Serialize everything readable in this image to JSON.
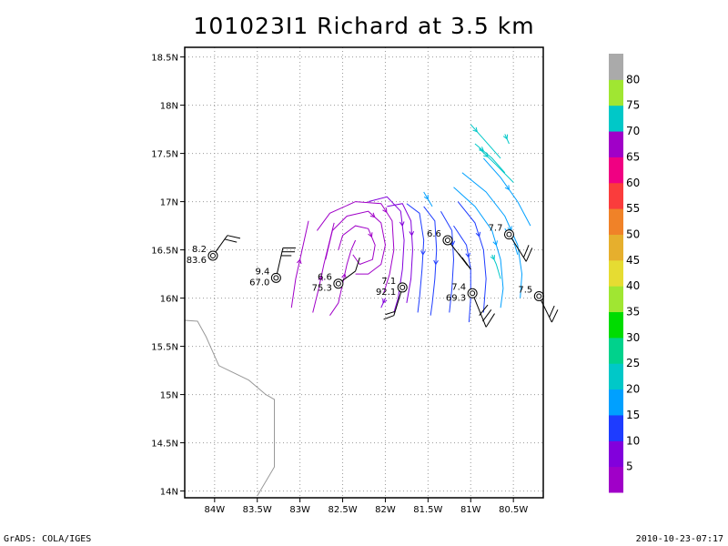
{
  "title": "101023I1 Richard at 3.5 km",
  "footer": {
    "left": "GrADS: COLA/IGES",
    "right": "2010-10-23-07:17"
  },
  "chart_data": {
    "type": "streamline-map",
    "title": "101023I1 Richard at 3.5 km",
    "xlim": [
      -84.35,
      -80.15
    ],
    "ylim": [
      13.93,
      18.6
    ],
    "x_ticks": [
      {
        "value": -84.0,
        "label": "84W"
      },
      {
        "value": -83.5,
        "label": "83.5W"
      },
      {
        "value": -83.0,
        "label": "83W"
      },
      {
        "value": -82.5,
        "label": "82.5W"
      },
      {
        "value": -82.0,
        "label": "82W"
      },
      {
        "value": -81.5,
        "label": "81.5W"
      },
      {
        "value": -81.0,
        "label": "81W"
      },
      {
        "value": -80.5,
        "label": "80.5W"
      }
    ],
    "y_ticks": [
      {
        "value": 14.0,
        "label": "14N"
      },
      {
        "value": 14.5,
        "label": "14.5N"
      },
      {
        "value": 15.0,
        "label": "15N"
      },
      {
        "value": 15.5,
        "label": "15.5N"
      },
      {
        "value": 16.0,
        "label": "16N"
      },
      {
        "value": 16.5,
        "label": "16.5N"
      },
      {
        "value": 17.0,
        "label": "17N"
      },
      {
        "value": 17.5,
        "label": "17.5N"
      },
      {
        "value": 18.0,
        "label": "18N"
      },
      {
        "value": 18.5,
        "label": "18.5N"
      }
    ],
    "grid": true,
    "coastline": [
      [
        -84.35,
        15.77
      ],
      [
        -84.2,
        15.76
      ],
      [
        -84.1,
        15.6
      ],
      [
        -83.95,
        15.3
      ],
      [
        -83.6,
        15.15
      ],
      [
        -83.4,
        15.0
      ],
      [
        -83.3,
        14.95
      ],
      [
        -83.3,
        14.25
      ],
      [
        -83.5,
        13.95
      ]
    ],
    "stations": [
      {
        "lon": -84.02,
        "lat": 16.44,
        "label_top": "8.2",
        "label_bottom": "83.6",
        "barb": [
          [
            -84.02,
            16.44
          ],
          [
            -83.85,
            16.65
          ]
        ],
        "flags": [
          [
            -83.85,
            16.65,
            -83.7,
            16.62
          ],
          [
            -83.88,
            16.61,
            -83.74,
            16.58
          ]
        ]
      },
      {
        "lon": -83.28,
        "lat": 16.21,
        "label_top": "9.4",
        "label_bottom": "67.0",
        "barb": [
          [
            -83.28,
            16.21
          ],
          [
            -83.2,
            16.52
          ]
        ],
        "flags": [
          [
            -83.2,
            16.52,
            -83.05,
            16.52
          ],
          [
            -83.21,
            16.48,
            -83.06,
            16.48
          ],
          [
            -83.22,
            16.44,
            -83.1,
            16.44
          ]
        ]
      },
      {
        "lon": -82.55,
        "lat": 16.15,
        "label_top": "6.6",
        "label_bottom": "75.3",
        "barb": [
          [
            -82.55,
            16.15
          ],
          [
            -82.35,
            16.28
          ]
        ],
        "flags": [
          [
            -82.35,
            16.28,
            -82.3,
            16.42
          ]
        ]
      },
      {
        "lon": -81.8,
        "lat": 16.11,
        "label_top": "7.1",
        "label_bottom": "92.1",
        "barb": [
          [
            -81.8,
            16.11
          ],
          [
            -81.9,
            15.82
          ]
        ],
        "flags": [
          [
            -81.9,
            15.82,
            -82.02,
            15.78
          ],
          [
            -81.89,
            15.86,
            -82.0,
            15.83
          ]
        ]
      },
      {
        "lon": -81.27,
        "lat": 16.6,
        "label_top": "6.6",
        "label_bottom": "",
        "barb": [
          [
            -81.27,
            16.6
          ],
          [
            -81.0,
            16.3
          ]
        ],
        "flags": [
          [
            -81.0,
            16.3,
            -81.1,
            16.42
          ],
          [
            -81.04,
            16.34,
            -81.14,
            16.46
          ]
        ]
      },
      {
        "lon": -80.98,
        "lat": 16.05,
        "label_top": "7.4",
        "label_bottom": "69.3",
        "barb": [
          [
            -80.98,
            16.05
          ],
          [
            -80.82,
            15.7
          ]
        ],
        "flags": [
          [
            -80.82,
            15.7,
            -80.72,
            15.84
          ],
          [
            -80.86,
            15.76,
            -80.76,
            15.88
          ],
          [
            -80.9,
            15.82,
            -80.8,
            15.93
          ]
        ]
      },
      {
        "lon": -80.55,
        "lat": 16.66,
        "label_top": "7.7",
        "label_bottom": "",
        "barb": [
          [
            -80.55,
            16.66
          ],
          [
            -80.35,
            16.38
          ]
        ],
        "flags": [
          [
            -80.35,
            16.38,
            -80.28,
            16.52
          ],
          [
            -80.38,
            16.42,
            -80.32,
            16.55
          ]
        ]
      },
      {
        "lon": -80.2,
        "lat": 16.02,
        "label_top": "7.5",
        "label_bottom": "",
        "barb": [
          [
            -80.2,
            16.02
          ],
          [
            -80.05,
            15.75
          ]
        ],
        "flags": [
          [
            -80.05,
            15.75,
            -79.98,
            15.88
          ],
          [
            -80.08,
            15.8,
            -80.02,
            15.92
          ]
        ]
      }
    ],
    "colorbar": {
      "labels": [
        "5",
        "10",
        "15",
        "20",
        "25",
        "30",
        "35",
        "40",
        "45",
        "50",
        "55",
        "60",
        "65",
        "70",
        "75",
        "80"
      ],
      "colors": [
        "#a000c8",
        "#8200dc",
        "#1e3cff",
        "#00a0ff",
        "#00c8c8",
        "#00d28c",
        "#00dc00",
        "#a0e632",
        "#e6dc32",
        "#e6af2d",
        "#f08228",
        "#fa3c3c",
        "#f00082",
        "#a000c8",
        "#00c8c8",
        "#a0e632",
        "#aaaaaa"
      ]
    },
    "streamlines": [
      {
        "c": "#a000c8",
        "p": [
          [
            -83.1,
            15.9
          ],
          [
            -83.05,
            16.2
          ],
          [
            -82.95,
            16.6
          ],
          [
            -82.9,
            16.8
          ]
        ]
      },
      {
        "c": "#a000c8",
        "p": [
          [
            -82.85,
            15.85
          ],
          [
            -82.78,
            16.1
          ],
          [
            -82.72,
            16.35
          ],
          [
            -82.65,
            16.6
          ],
          [
            -82.6,
            16.78
          ]
        ]
      },
      {
        "c": "#a000c8",
        "p": [
          [
            -82.65,
            15.82
          ],
          [
            -82.55,
            15.95
          ],
          [
            -82.5,
            16.15
          ],
          [
            -82.45,
            16.35
          ],
          [
            -82.4,
            16.5
          ],
          [
            -82.35,
            16.6
          ]
        ]
      },
      {
        "c": "#a000c8",
        "p": [
          [
            -82.55,
            16.5
          ],
          [
            -82.5,
            16.65
          ],
          [
            -82.35,
            16.75
          ],
          [
            -82.2,
            16.72
          ],
          [
            -82.12,
            16.55
          ],
          [
            -82.15,
            16.4
          ],
          [
            -82.3,
            16.35
          ],
          [
            -82.38,
            16.45
          ]
        ]
      },
      {
        "c": "#a000c8",
        "p": [
          [
            -82.7,
            16.4
          ],
          [
            -82.62,
            16.7
          ],
          [
            -82.45,
            16.85
          ],
          [
            -82.2,
            16.9
          ],
          [
            -82.05,
            16.78
          ],
          [
            -82.0,
            16.55
          ],
          [
            -82.05,
            16.35
          ],
          [
            -82.2,
            16.25
          ],
          [
            -82.35,
            16.25
          ]
        ]
      },
      {
        "c": "#a000c8",
        "p": [
          [
            -82.8,
            16.7
          ],
          [
            -82.65,
            16.88
          ],
          [
            -82.35,
            17.0
          ],
          [
            -82.05,
            16.98
          ],
          [
            -81.92,
            16.8
          ],
          [
            -81.9,
            16.5
          ],
          [
            -81.95,
            16.25
          ],
          [
            -82.02,
            16.05
          ]
        ]
      },
      {
        "c": "#8200dc",
        "p": [
          [
            -82.2,
            17.0
          ],
          [
            -81.98,
            17.05
          ],
          [
            -81.82,
            16.9
          ],
          [
            -81.78,
            16.6
          ],
          [
            -81.8,
            16.3
          ],
          [
            -81.85,
            16.0
          ],
          [
            -81.9,
            15.85
          ]
        ]
      },
      {
        "c": "#8200dc",
        "p": [
          [
            -81.98,
            16.95
          ],
          [
            -81.8,
            16.98
          ],
          [
            -81.7,
            16.8
          ],
          [
            -81.68,
            16.5
          ],
          [
            -81.7,
            16.2
          ],
          [
            -81.75,
            15.95
          ]
        ]
      },
      {
        "c": "#1e3cff",
        "p": [
          [
            -81.75,
            16.98
          ],
          [
            -81.6,
            16.88
          ],
          [
            -81.55,
            16.6
          ],
          [
            -81.57,
            16.3
          ],
          [
            -81.6,
            16.0
          ],
          [
            -81.62,
            15.85
          ]
        ]
      },
      {
        "c": "#1e3cff",
        "p": [
          [
            -81.55,
            16.95
          ],
          [
            -81.42,
            16.8
          ],
          [
            -81.4,
            16.5
          ],
          [
            -81.42,
            16.2
          ],
          [
            -81.45,
            15.95
          ],
          [
            -81.47,
            15.82
          ]
        ]
      },
      {
        "c": "#1e3cff",
        "p": [
          [
            -81.35,
            16.9
          ],
          [
            -81.22,
            16.7
          ],
          [
            -81.2,
            16.4
          ],
          [
            -81.22,
            16.1
          ],
          [
            -81.25,
            15.85
          ]
        ]
      },
      {
        "c": "#1e3cff",
        "p": [
          [
            -81.2,
            16.75
          ],
          [
            -81.05,
            16.55
          ],
          [
            -81.0,
            16.3
          ],
          [
            -81.0,
            16.0
          ],
          [
            -81.02,
            15.75
          ]
        ]
      },
      {
        "c": "#1e3cff",
        "p": [
          [
            -81.15,
            17.0
          ],
          [
            -80.95,
            16.78
          ],
          [
            -80.85,
            16.5
          ],
          [
            -80.82,
            16.2
          ],
          [
            -80.85,
            15.85
          ]
        ]
      },
      {
        "c": "#00a0ff",
        "p": [
          [
            -81.2,
            17.15
          ],
          [
            -80.95,
            16.95
          ],
          [
            -80.75,
            16.7
          ],
          [
            -80.65,
            16.4
          ],
          [
            -80.62,
            16.1
          ],
          [
            -80.65,
            15.9
          ]
        ]
      },
      {
        "c": "#00a0ff",
        "p": [
          [
            -81.1,
            17.3
          ],
          [
            -80.82,
            17.1
          ],
          [
            -80.6,
            16.85
          ],
          [
            -80.45,
            16.55
          ],
          [
            -80.4,
            16.25
          ],
          [
            -80.42,
            16.0
          ]
        ]
      },
      {
        "c": "#00a0ff",
        "p": [
          [
            -80.85,
            17.45
          ],
          [
            -80.65,
            17.25
          ],
          [
            -80.45,
            17.0
          ],
          [
            -80.3,
            16.75
          ]
        ]
      },
      {
        "c": "#00c8c8",
        "p": [
          [
            -80.95,
            17.6
          ],
          [
            -80.75,
            17.45
          ],
          [
            -80.6,
            17.3
          ]
        ]
      },
      {
        "c": "#00c8c8",
        "p": [
          [
            -81.0,
            17.8
          ],
          [
            -80.85,
            17.65
          ],
          [
            -80.65,
            17.45
          ]
        ]
      },
      {
        "c": "#00c8c8",
        "p": [
          [
            -80.9,
            17.55
          ],
          [
            -80.7,
            17.38
          ],
          [
            -80.5,
            17.2
          ]
        ]
      },
      {
        "c": "#00c8c8",
        "p": [
          [
            -80.6,
            17.7
          ],
          [
            -80.55,
            17.6
          ]
        ]
      },
      {
        "c": "#00a0ff",
        "p": [
          [
            -80.6,
            16.72
          ],
          [
            -80.5,
            16.6
          ],
          [
            -80.45,
            16.45
          ]
        ]
      },
      {
        "c": "#00c8c8",
        "p": [
          [
            -80.75,
            16.45
          ],
          [
            -80.7,
            16.35
          ],
          [
            -80.65,
            16.2
          ]
        ]
      },
      {
        "c": "#00a0ff",
        "p": [
          [
            -81.55,
            17.1
          ],
          [
            -81.45,
            16.95
          ]
        ]
      },
      {
        "c": "#8200dc",
        "p": [
          [
            -82.0,
            16.0
          ],
          [
            -82.05,
            15.9
          ]
        ]
      }
    ]
  }
}
